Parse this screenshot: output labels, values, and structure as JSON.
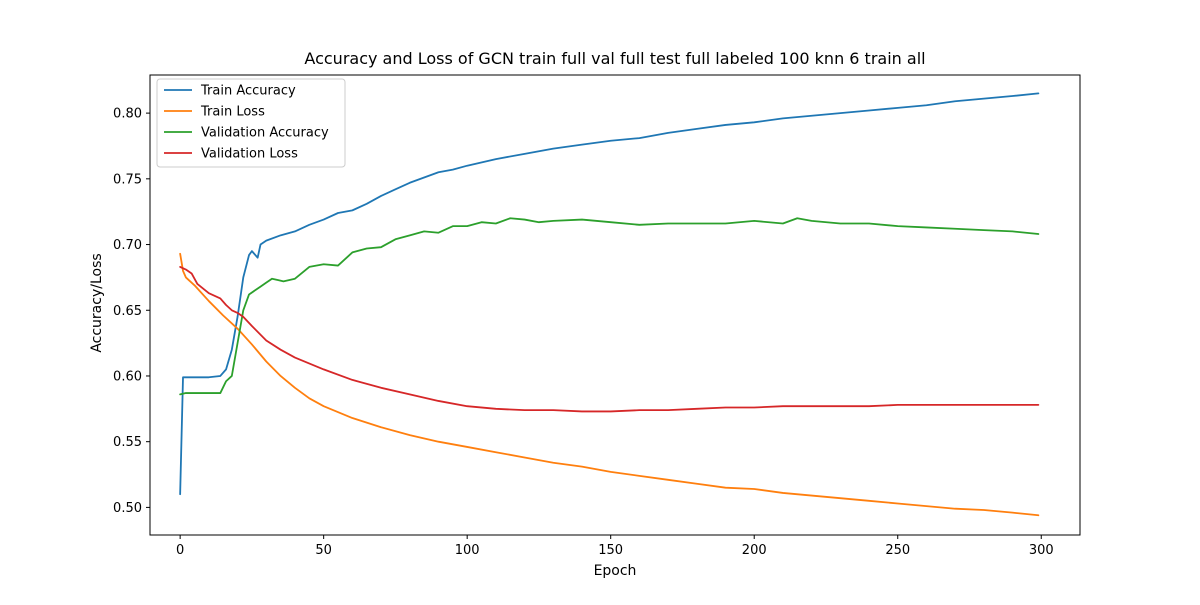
{
  "chart_data": {
    "type": "line",
    "title": "Accuracy and Loss of GCN train full val full test full labeled 100 knn 6 train all",
    "xlabel": "Epoch",
    "ylabel": "Accuracy/Loss",
    "xlim": [
      -10.5,
      313.5
    ],
    "ylim": [
      0.479,
      0.829
    ],
    "xticks": [
      0,
      50,
      100,
      150,
      200,
      250,
      300
    ],
    "yticks": [
      0.5,
      0.55,
      0.6,
      0.65,
      0.7,
      0.75,
      0.8
    ],
    "xtick_labels": [
      "0",
      "50",
      "100",
      "150",
      "200",
      "250",
      "300"
    ],
    "ytick_labels": [
      "0.50",
      "0.55",
      "0.60",
      "0.65",
      "0.70",
      "0.75",
      "0.80"
    ],
    "grid": false,
    "legend_position": "upper-left",
    "series": [
      {
        "name": "Train Accuracy",
        "color": "#1f77b4",
        "x": [
          0,
          1,
          2,
          5,
          10,
          14,
          16,
          18,
          20,
          22,
          24,
          25,
          27,
          28,
          30,
          35,
          40,
          45,
          50,
          55,
          60,
          65,
          70,
          75,
          80,
          85,
          90,
          95,
          100,
          110,
          120,
          130,
          140,
          150,
          160,
          170,
          180,
          190,
          200,
          210,
          220,
          230,
          240,
          250,
          260,
          270,
          280,
          290,
          299
        ],
        "y": [
          0.51,
          0.599,
          0.599,
          0.599,
          0.599,
          0.6,
          0.605,
          0.62,
          0.645,
          0.675,
          0.692,
          0.695,
          0.69,
          0.7,
          0.703,
          0.707,
          0.71,
          0.715,
          0.719,
          0.724,
          0.726,
          0.731,
          0.737,
          0.742,
          0.747,
          0.751,
          0.755,
          0.757,
          0.76,
          0.765,
          0.769,
          0.773,
          0.776,
          0.779,
          0.781,
          0.785,
          0.788,
          0.791,
          0.793,
          0.796,
          0.798,
          0.8,
          0.802,
          0.804,
          0.806,
          0.809,
          0.811,
          0.813,
          0.815
        ]
      },
      {
        "name": "Train Loss",
        "color": "#ff7f0e",
        "x": [
          0,
          1,
          2,
          5,
          10,
          15,
          20,
          25,
          30,
          35,
          40,
          45,
          50,
          60,
          70,
          80,
          90,
          100,
          110,
          120,
          130,
          140,
          150,
          160,
          170,
          180,
          190,
          200,
          210,
          220,
          230,
          240,
          250,
          260,
          270,
          280,
          290,
          299
        ],
        "y": [
          0.693,
          0.68,
          0.675,
          0.669,
          0.657,
          0.646,
          0.636,
          0.624,
          0.611,
          0.6,
          0.591,
          0.583,
          0.577,
          0.568,
          0.561,
          0.555,
          0.55,
          0.546,
          0.542,
          0.538,
          0.534,
          0.531,
          0.527,
          0.524,
          0.521,
          0.518,
          0.515,
          0.514,
          0.511,
          0.509,
          0.507,
          0.505,
          0.503,
          0.501,
          0.499,
          0.498,
          0.496,
          0.494
        ]
      },
      {
        "name": "Validation Accuracy",
        "color": "#2ca02c",
        "x": [
          0,
          2,
          5,
          10,
          14,
          16,
          18,
          20,
          22,
          24,
          26,
          28,
          30,
          32,
          34,
          36,
          40,
          45,
          50,
          55,
          60,
          65,
          70,
          75,
          80,
          85,
          90,
          95,
          100,
          105,
          110,
          115,
          120,
          125,
          130,
          140,
          150,
          160,
          170,
          180,
          190,
          200,
          210,
          215,
          220,
          230,
          240,
          250,
          260,
          270,
          280,
          290,
          299
        ],
        "y": [
          0.586,
          0.587,
          0.587,
          0.587,
          0.587,
          0.596,
          0.6,
          0.625,
          0.65,
          0.662,
          0.665,
          0.668,
          0.671,
          0.674,
          0.673,
          0.672,
          0.674,
          0.683,
          0.685,
          0.684,
          0.694,
          0.697,
          0.698,
          0.704,
          0.707,
          0.71,
          0.709,
          0.714,
          0.714,
          0.717,
          0.716,
          0.72,
          0.719,
          0.717,
          0.718,
          0.719,
          0.717,
          0.715,
          0.716,
          0.716,
          0.716,
          0.718,
          0.716,
          0.72,
          0.718,
          0.716,
          0.716,
          0.714,
          0.713,
          0.712,
          0.711,
          0.71,
          0.708
        ]
      },
      {
        "name": "Validation Loss",
        "color": "#d62728",
        "x": [
          0,
          2,
          4,
          6,
          10,
          14,
          16,
          18,
          20,
          22,
          25,
          30,
          35,
          40,
          50,
          60,
          70,
          80,
          90,
          100,
          110,
          120,
          130,
          140,
          150,
          160,
          170,
          180,
          190,
          200,
          210,
          220,
          230,
          240,
          250,
          260,
          270,
          280,
          290,
          299
        ],
        "y": [
          0.683,
          0.681,
          0.678,
          0.67,
          0.663,
          0.659,
          0.654,
          0.65,
          0.648,
          0.645,
          0.638,
          0.627,
          0.62,
          0.614,
          0.605,
          0.597,
          0.591,
          0.586,
          0.581,
          0.577,
          0.575,
          0.574,
          0.574,
          0.573,
          0.573,
          0.574,
          0.574,
          0.575,
          0.576,
          0.576,
          0.577,
          0.577,
          0.577,
          0.577,
          0.578,
          0.578,
          0.578,
          0.578,
          0.578,
          0.578
        ]
      }
    ]
  }
}
